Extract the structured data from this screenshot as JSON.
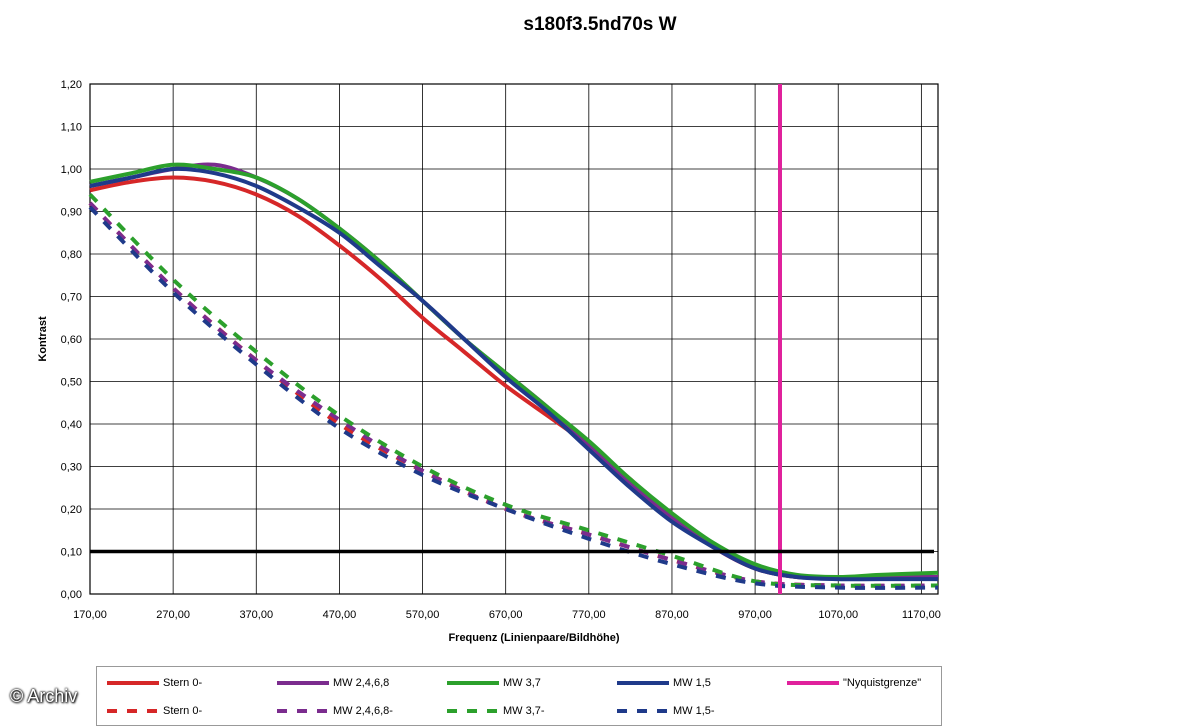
{
  "watermark": "© Archiv",
  "chart_data": {
    "type": "line",
    "title": "s180f3.5nd70s W",
    "xlabel": "Frequenz (Linienpaare/Bildhöhe)",
    "ylabel": "Kontrast",
    "xlim": [
      170,
      1190
    ],
    "ylim": [
      0,
      1.2
    ],
    "x_ticks": [
      "170,00",
      "270,00",
      "370,00",
      "470,00",
      "570,00",
      "670,00",
      "770,00",
      "870,00",
      "970,00",
      "1070,00",
      "1170,00"
    ],
    "y_ticks": [
      "0,00",
      "0,10",
      "0,20",
      "0,30",
      "0,40",
      "0,50",
      "0,60",
      "0,70",
      "0,80",
      "0,90",
      "1,00",
      "1,10",
      "1,20"
    ],
    "grid": true,
    "legend_position": "bottom",
    "series": [
      {
        "name": "Stern 0-",
        "color": "#d62728",
        "style": "solid",
        "x": [
          170,
          220,
          270,
          320,
          370,
          420,
          470,
          520,
          570,
          620,
          670,
          720,
          770,
          820,
          870,
          920,
          970,
          1020,
          1070,
          1120,
          1190
        ],
        "y": [
          0.95,
          0.97,
          0.98,
          0.97,
          0.94,
          0.89,
          0.82,
          0.74,
          0.65,
          0.57,
          0.49,
          0.42,
          0.35,
          0.27,
          0.18,
          0.11,
          0.06,
          0.04,
          0.04,
          0.04,
          0.04
        ]
      },
      {
        "name": "MW 2,4,6,8",
        "color": "#7b2c8e",
        "style": "solid",
        "x": [
          170,
          220,
          270,
          320,
          370,
          420,
          470,
          520,
          570,
          620,
          670,
          720,
          770,
          820,
          870,
          920,
          970,
          1020,
          1070,
          1120,
          1190
        ],
        "y": [
          0.96,
          0.98,
          1.0,
          1.01,
          0.98,
          0.93,
          0.86,
          0.78,
          0.69,
          0.6,
          0.52,
          0.44,
          0.35,
          0.26,
          0.18,
          0.11,
          0.06,
          0.04,
          0.04,
          0.04,
          0.04
        ]
      },
      {
        "name": "MW 3,7",
        "color": "#2ca02c",
        "style": "solid",
        "x": [
          170,
          220,
          270,
          320,
          370,
          420,
          470,
          520,
          570,
          620,
          670,
          720,
          770,
          820,
          870,
          920,
          970,
          1020,
          1070,
          1120,
          1190
        ],
        "y": [
          0.97,
          0.99,
          1.01,
          1.0,
          0.98,
          0.93,
          0.86,
          0.78,
          0.69,
          0.6,
          0.52,
          0.44,
          0.36,
          0.27,
          0.19,
          0.12,
          0.07,
          0.045,
          0.04,
          0.045,
          0.05
        ]
      },
      {
        "name": "MW 1,5",
        "color": "#1f3a8a",
        "style": "solid",
        "x": [
          170,
          220,
          270,
          320,
          370,
          420,
          470,
          520,
          570,
          620,
          670,
          720,
          770,
          820,
          870,
          920,
          970,
          1020,
          1070,
          1120,
          1190
        ],
        "y": [
          0.96,
          0.98,
          1.0,
          0.99,
          0.96,
          0.91,
          0.85,
          0.77,
          0.69,
          0.6,
          0.51,
          0.43,
          0.34,
          0.25,
          0.17,
          0.11,
          0.06,
          0.04,
          0.035,
          0.035,
          0.035
        ]
      },
      {
        "name": "\"Nyquistgrenze\"",
        "color": "#e0219c",
        "style": "solid",
        "x": [
          1000,
          1000
        ],
        "y": [
          0,
          1.2
        ]
      },
      {
        "name": "Stern 0-",
        "color": "#d62728",
        "style": "dashed",
        "x": [
          170,
          270,
          370,
          470,
          570,
          670,
          770,
          870,
          970,
          1070,
          1190
        ],
        "y": [
          0.92,
          0.72,
          0.55,
          0.4,
          0.29,
          0.2,
          0.14,
          0.08,
          0.03,
          0.02,
          0.02
        ]
      },
      {
        "name": "MW 2,4,6,8-",
        "color": "#7b2c8e",
        "style": "dashed",
        "x": [
          170,
          270,
          370,
          470,
          570,
          670,
          770,
          870,
          970,
          1070,
          1190
        ],
        "y": [
          0.92,
          0.72,
          0.55,
          0.41,
          0.29,
          0.2,
          0.14,
          0.08,
          0.03,
          0.02,
          0.02
        ]
      },
      {
        "name": "MW 3,7-",
        "color": "#2ca02c",
        "style": "dashed",
        "x": [
          170,
          270,
          370,
          470,
          570,
          670,
          770,
          870,
          970,
          1070,
          1190
        ],
        "y": [
          0.94,
          0.74,
          0.57,
          0.42,
          0.3,
          0.21,
          0.15,
          0.09,
          0.03,
          0.02,
          0.02
        ]
      },
      {
        "name": "MW 1,5-",
        "color": "#1f3a8a",
        "style": "dashed",
        "x": [
          170,
          270,
          370,
          470,
          570,
          670,
          770,
          870,
          970,
          1070,
          1190
        ],
        "y": [
          0.91,
          0.71,
          0.54,
          0.39,
          0.28,
          0.2,
          0.13,
          0.07,
          0.025,
          0.015,
          0.015
        ]
      }
    ],
    "reference_lines": [
      {
        "axis": "y",
        "value": 0.1,
        "color": "#000000"
      }
    ]
  }
}
